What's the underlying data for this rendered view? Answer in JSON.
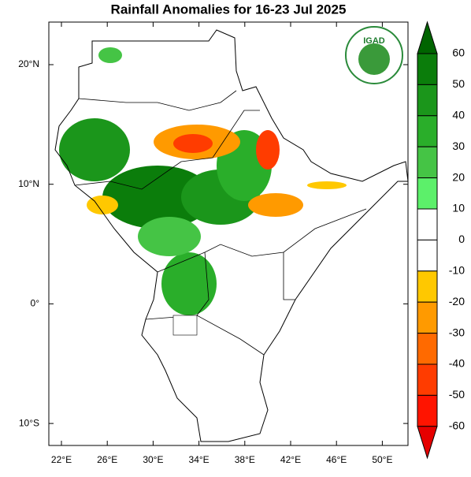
{
  "title": "Rainfall Anomalies for 16-23 Jul 2025",
  "logo": {
    "text": "IGAD"
  },
  "map": {
    "lon_labels": [
      "22°E",
      "26°E",
      "30°E",
      "34°E",
      "38°E",
      "42°E",
      "46°E",
      "50°E"
    ],
    "lat_labels": [
      "20°N",
      "10°N",
      "0°",
      "10°S"
    ]
  },
  "colorbar": {
    "labels": [
      "60",
      "50",
      "40",
      "30",
      "20",
      "10",
      "0",
      "-10",
      "-20",
      "-30",
      "-40",
      "-50",
      "-60"
    ],
    "colors": [
      "#006400",
      "#0b7d0b",
      "#1b961b",
      "#2aae2a",
      "#45c445",
      "#5cf06a",
      "#ffffff",
      "#ffffff",
      "#ffc800",
      "#ff9a00",
      "#ff6a00",
      "#ff3c00",
      "#ff1400",
      "#e60000"
    ]
  }
}
